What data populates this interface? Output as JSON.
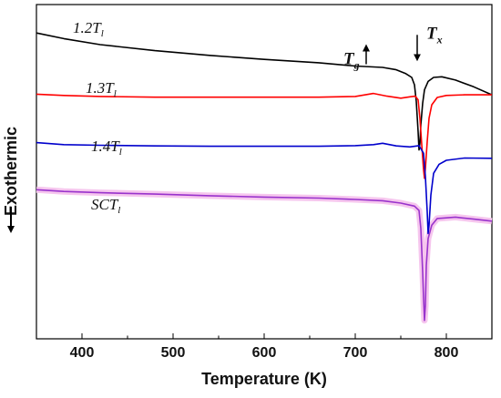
{
  "chart_data": {
    "type": "line",
    "title": "",
    "xlabel": "Temperature (K)",
    "ylabel": "Exothermic",
    "xlim": [
      350,
      850
    ],
    "ylim": [
      0,
      100
    ],
    "x_ticks": [
      400,
      500,
      600,
      700,
      800
    ],
    "y_ticks_shown": false,
    "grid": false,
    "legend": "inline labels",
    "series": [
      {
        "name": "1.2T",
        "name_sub": "l",
        "color": "#000000",
        "points": [
          [
            350,
            91.5
          ],
          [
            380,
            89.8
          ],
          [
            420,
            88.0
          ],
          [
            480,
            86.2
          ],
          [
            540,
            84.8
          ],
          [
            600,
            83.6
          ],
          [
            660,
            82.6
          ],
          [
            700,
            81.6
          ],
          [
            730,
            81.2
          ],
          [
            745,
            80.5
          ],
          [
            755,
            79.4
          ],
          [
            762,
            78.2
          ],
          [
            765,
            76.0
          ],
          [
            767,
            71.0
          ],
          [
            769,
            62.0
          ],
          [
            770,
            56.5
          ],
          [
            771,
            58.5
          ],
          [
            772,
            64.0
          ],
          [
            774,
            70.5
          ],
          [
            776,
            74.5
          ],
          [
            780,
            77.0
          ],
          [
            786,
            78.2
          ],
          [
            795,
            78.4
          ],
          [
            810,
            77.4
          ],
          [
            830,
            75.4
          ],
          [
            850,
            73.0
          ]
        ]
      },
      {
        "name": "1.3T",
        "name_sub": "l",
        "color": "#ff0000",
        "points": [
          [
            350,
            73.2
          ],
          [
            380,
            72.8
          ],
          [
            420,
            72.5
          ],
          [
            480,
            72.3
          ],
          [
            540,
            72.3
          ],
          [
            600,
            72.3
          ],
          [
            660,
            72.3
          ],
          [
            700,
            72.5
          ],
          [
            720,
            73.4
          ],
          [
            735,
            72.6
          ],
          [
            750,
            72.0
          ],
          [
            760,
            72.4
          ],
          [
            766,
            72.6
          ],
          [
            769,
            71.5
          ],
          [
            771,
            66.0
          ],
          [
            773,
            58.0
          ],
          [
            775,
            50.5
          ],
          [
            776,
            48.0
          ],
          [
            777,
            51.0
          ],
          [
            779,
            59.0
          ],
          [
            781,
            66.0
          ],
          [
            784,
            70.0
          ],
          [
            790,
            72.2
          ],
          [
            800,
            72.8
          ],
          [
            820,
            73.0
          ],
          [
            850,
            73.0
          ]
        ]
      },
      {
        "name": "1.4T",
        "name_sub": "l",
        "color": "#0000cc",
        "points": [
          [
            350,
            58.7
          ],
          [
            380,
            58.1
          ],
          [
            420,
            57.9
          ],
          [
            480,
            57.7
          ],
          [
            540,
            57.6
          ],
          [
            600,
            57.6
          ],
          [
            660,
            57.6
          ],
          [
            700,
            57.8
          ],
          [
            720,
            58.1
          ],
          [
            730,
            58.5
          ],
          [
            745,
            57.7
          ],
          [
            760,
            57.4
          ],
          [
            770,
            57.8
          ],
          [
            775,
            55.5
          ],
          [
            777,
            48.5
          ],
          [
            779,
            38.0
          ],
          [
            780,
            31.5
          ],
          [
            781,
            34.0
          ],
          [
            783,
            43.0
          ],
          [
            786,
            49.5
          ],
          [
            792,
            52.2
          ],
          [
            800,
            53.4
          ],
          [
            820,
            54.1
          ],
          [
            850,
            54.0
          ]
        ]
      },
      {
        "name": "SCT",
        "name_sub": "l",
        "color": "#9933cc",
        "band_color": "#f6c6ee",
        "points": [
          [
            350,
            44.6
          ],
          [
            380,
            44.1
          ],
          [
            420,
            43.7
          ],
          [
            480,
            43.3
          ],
          [
            540,
            42.8
          ],
          [
            600,
            42.4
          ],
          [
            660,
            42.1
          ],
          [
            700,
            41.7
          ],
          [
            730,
            41.3
          ],
          [
            750,
            40.6
          ],
          [
            765,
            39.7
          ],
          [
            770,
            38.4
          ],
          [
            772,
            33.0
          ],
          [
            774,
            20.0
          ],
          [
            775,
            12.0
          ],
          [
            776,
            5.5
          ],
          [
            777,
            10.0
          ],
          [
            778,
            22.0
          ],
          [
            780,
            30.0
          ],
          [
            784,
            34.0
          ],
          [
            790,
            36.0
          ],
          [
            810,
            36.4
          ],
          [
            830,
            35.8
          ],
          [
            850,
            35.2
          ]
        ]
      }
    ],
    "annotations": [
      {
        "id": "tg",
        "label": "T",
        "sub": "g",
        "x": 712,
        "y": 81.6,
        "arrow": "up"
      },
      {
        "id": "tx",
        "label": "T",
        "sub": "x",
        "x": 768,
        "y": 83.3,
        "arrow": "down"
      }
    ]
  }
}
